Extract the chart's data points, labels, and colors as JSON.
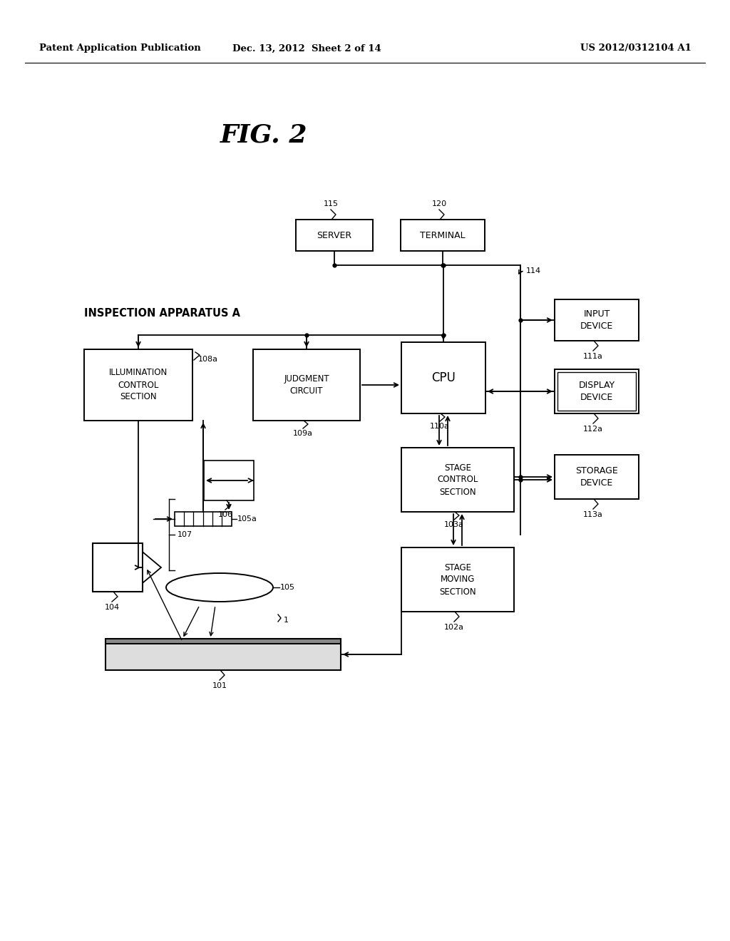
{
  "bg_color": "#ffffff",
  "header_left": "Patent Application Publication",
  "header_mid": "Dec. 13, 2012  Sheet 2 of 14",
  "header_right": "US 2012/0312104 A1",
  "fig_title": "FIG. 2",
  "inspection_label": "INSPECTION APPARATUS A"
}
